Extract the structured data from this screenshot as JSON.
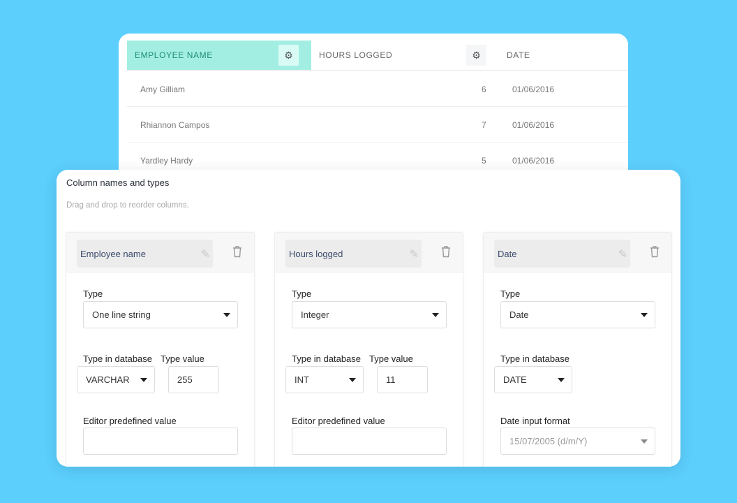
{
  "table": {
    "headers": [
      {
        "label": "EMPLOYEE NAME",
        "active": true
      },
      {
        "label": "HOURS LOGGED"
      },
      {
        "label": "DATE"
      }
    ],
    "rows": [
      [
        "Amy Gilliam",
        "6",
        "01/06/2016"
      ],
      [
        "Rhiannon Campos",
        "7",
        "01/06/2016"
      ],
      [
        "Yardley Hardy",
        "5",
        "01/06/2016"
      ]
    ],
    "active_color": "#a3eee3"
  },
  "panel": {
    "title": "Column names and types",
    "subtitle": "Drag and drop to reorder columns.",
    "columns": [
      {
        "name": "Employee name",
        "type_label": "Type",
        "type": "One line string",
        "db_label": "Type in database",
        "db_type": "VARCHAR",
        "value_label": "Type value",
        "value": "255",
        "extra_label": "Editor predefined value",
        "extra_value": ""
      },
      {
        "name": "Hours logged",
        "type_label": "Type",
        "type": "Integer",
        "db_label": "Type in database",
        "db_type": "INT",
        "value_label": "Type value",
        "value": "11",
        "extra_label": "Editor predefined value",
        "extra_value": ""
      },
      {
        "name": "Date",
        "type_label": "Type",
        "type": "Date",
        "db_label": "Type in database",
        "db_type": "DATE",
        "extra_label": "Date input format",
        "extra_placeholder": "15/07/2005 (d/m/Y)"
      }
    ]
  }
}
